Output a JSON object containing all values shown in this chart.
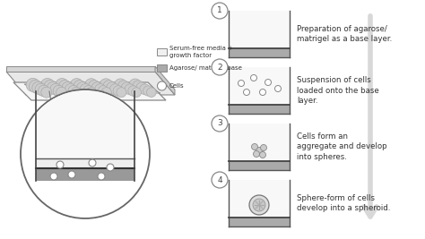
{
  "bg_color": "#ffffff",
  "legend_items": [
    {
      "label": "Serum-free media +\ngrowth factor",
      "color": "#f0f0f0"
    },
    {
      "label": "Agarose/ matrigel base",
      "color": "#b0b0b0"
    },
    {
      "label": "Cells",
      "color": "#ffffff"
    }
  ],
  "steps": [
    {
      "num": "1",
      "text": "Preparation of agarose/\nmatrigel as a base layer.",
      "has_cells": false,
      "has_aggregate": false,
      "has_spheroid": false
    },
    {
      "num": "2",
      "text": "Suspension of cells\nloaded onto the base\nlayer.",
      "has_cells": true,
      "has_aggregate": false,
      "has_spheroid": false
    },
    {
      "num": "3",
      "text": "Cells form an\naggregate and develop\ninto spheres.",
      "has_cells": false,
      "has_aggregate": true,
      "has_spheroid": false
    },
    {
      "num": "4",
      "text": "Sphere-form of cells\ndevelop into a spheroid.",
      "has_cells": false,
      "has_aggregate": false,
      "has_spheroid": true
    }
  ],
  "well_media_color": "#f8f8f8",
  "well_base_color": "#aaaaaa",
  "well_border_color": "#555555",
  "arrow_color": "#d8d8d8",
  "text_color": "#333333",
  "step_label_color": "#555555",
  "plate_fill": "#f5f5f5",
  "plate_edge": "#888888",
  "well_grid_color": "#aaaaaa",
  "well_grid_fill": "#cccccc"
}
